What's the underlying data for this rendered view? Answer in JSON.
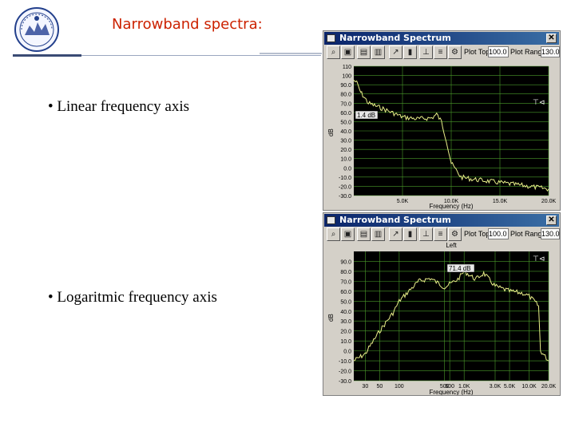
{
  "slide": {
    "title": "Narrowband spectra:",
    "bullets": [
      "• Linear frequency axis",
      "• Logaritmic frequency axis"
    ]
  },
  "window_linear": {
    "title": "Narrowband Spectrum",
    "plot_top_label": "Plot Top:",
    "plot_top_value": "100.0",
    "plot_range_label": "Plot Range:",
    "plot_range_value": "130.0",
    "cursor_label": "1.4 dB",
    "x_axis_label": "Frequency (Hz)"
  },
  "window_log": {
    "title": "Narrowband Spectrum",
    "plot_top_label": "Plot Top:",
    "plot_top_value": "100.0",
    "plot_range_label": "Plot Range:",
    "plot_range_value": "130.0",
    "channel_label": "Left",
    "cursor_label": "71.4 dB",
    "x_axis_label": "Frequency (Hz)"
  },
  "colors": {
    "title_red": "#cc2200",
    "plot_bg": "#000000",
    "trace": "#e8ee88",
    "grid": "#4a9a2a"
  },
  "chart_data": [
    {
      "type": "line",
      "xscale": "linear",
      "ylabel": "dB",
      "xlabel": "Frequency (Hz)",
      "yticks": [
        "110",
        "100",
        "90.0",
        "80.0",
        "70.0",
        "60.0",
        "50.0",
        "40.0",
        "30.0",
        "20.0",
        "10.0",
        "0.0",
        "-10.0",
        "-20.0",
        "-30.0"
      ],
      "xticks": [
        "5.0K",
        "10.0K",
        "15.0K",
        "20.0K"
      ],
      "ylim": [
        -30,
        110
      ],
      "xlim": [
        0,
        20000
      ],
      "x": [
        0,
        300,
        700,
        1500,
        3000,
        5000,
        6500,
        8000,
        8500,
        9000,
        9500,
        10000,
        11000,
        12000,
        15000,
        18000,
        20000
      ],
      "y": [
        95,
        92,
        82,
        70,
        64,
        55,
        53,
        54,
        58,
        50,
        30,
        5,
        -10,
        -12,
        -16,
        -20,
        -23
      ]
    },
    {
      "type": "line",
      "xscale": "log",
      "ylabel": "dB",
      "xlabel": "Frequency (Hz)",
      "yticks": [
        "90.0",
        "80.0",
        "70.0",
        "60.0",
        "50.0",
        "40.0",
        "30.0",
        "20.0",
        "10.0",
        "0.0",
        "-10.0",
        "-20.0",
        "-30.0"
      ],
      "xticks": [
        "30",
        "50",
        "100",
        "500",
        "600",
        "1.0K",
        "3.0K",
        "5.0K",
        "10.0K",
        "20.0K"
      ],
      "ylim": [
        -30,
        100
      ],
      "xlim": [
        20,
        20000
      ],
      "x": [
        20,
        30,
        50,
        80,
        100,
        150,
        200,
        300,
        500,
        800,
        1000,
        1500,
        2000,
        3000,
        5000,
        8000,
        10000,
        12000,
        14000,
        15000,
        20000
      ],
      "y": [
        -10,
        -3,
        20,
        38,
        50,
        62,
        70,
        73,
        64,
        72,
        80,
        72,
        78,
        65,
        60,
        58,
        55,
        50,
        45,
        0,
        -10
      ]
    }
  ]
}
